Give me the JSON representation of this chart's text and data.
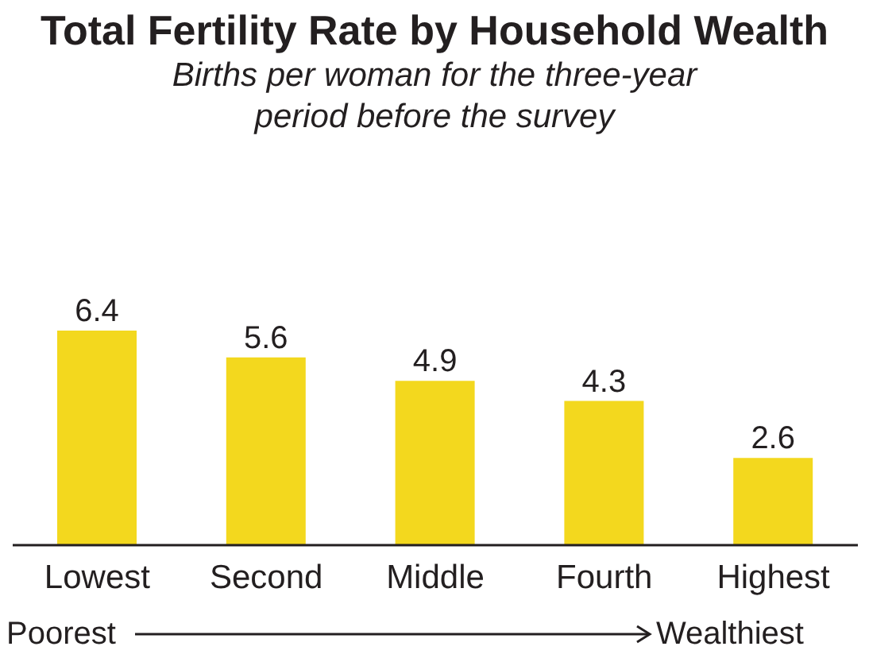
{
  "chart_data": {
    "type": "bar",
    "title": "Total Fertility Rate by Household Wealth",
    "subtitle": "Births per woman for the three-year period before the survey",
    "categories": [
      "Lowest",
      "Second",
      "Middle",
      "Fourth",
      "Highest"
    ],
    "values": [
      6.4,
      5.6,
      4.9,
      4.3,
      2.6
    ],
    "color": "#f3d81e",
    "data_labels": true,
    "annotations": [
      "Poorest",
      "Wealthiest"
    ]
  }
}
